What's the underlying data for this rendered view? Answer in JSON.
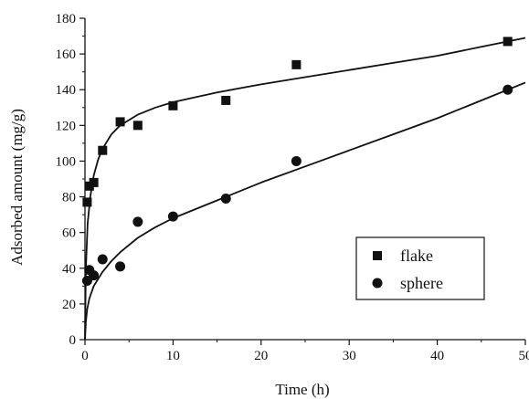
{
  "chart_data": {
    "type": "scatter",
    "xlabel": "Time (h)",
    "ylabel": "Adsorbed amount (mg/g)",
    "xlim": [
      0,
      50
    ],
    "ylim": [
      0,
      180
    ],
    "x_ticks": [
      0,
      10,
      20,
      30,
      40,
      50
    ],
    "y_ticks": [
      0,
      20,
      40,
      60,
      80,
      100,
      120,
      140,
      160,
      180
    ],
    "grid": false,
    "legend_position": "center-right",
    "colors": {
      "ink": "#111111",
      "background": "#ffffff"
    },
    "series": [
      {
        "name": "flake",
        "marker": "square",
        "points": [
          {
            "x": 0.25,
            "y": 77
          },
          {
            "x": 0.5,
            "y": 86
          },
          {
            "x": 1,
            "y": 88
          },
          {
            "x": 2,
            "y": 106
          },
          {
            "x": 4,
            "y": 122
          },
          {
            "x": 6,
            "y": 120
          },
          {
            "x": 10,
            "y": 131
          },
          {
            "x": 16,
            "y": 134
          },
          {
            "x": 24,
            "y": 154
          },
          {
            "x": 48,
            "y": 167
          }
        ],
        "fit_curve": [
          {
            "x": 0,
            "y": 0
          },
          {
            "x": 0.1,
            "y": 40
          },
          {
            "x": 0.3,
            "y": 65
          },
          {
            "x": 0.6,
            "y": 80
          },
          {
            "x": 1,
            "y": 92
          },
          {
            "x": 1.5,
            "y": 101
          },
          {
            "x": 2,
            "y": 107
          },
          {
            "x": 3,
            "y": 115
          },
          {
            "x": 4,
            "y": 120
          },
          {
            "x": 6,
            "y": 126
          },
          {
            "x": 8,
            "y": 130
          },
          {
            "x": 10,
            "y": 133
          },
          {
            "x": 15,
            "y": 138.5
          },
          {
            "x": 20,
            "y": 143
          },
          {
            "x": 25,
            "y": 147
          },
          {
            "x": 30,
            "y": 151
          },
          {
            "x": 35,
            "y": 155
          },
          {
            "x": 40,
            "y": 159
          },
          {
            "x": 45,
            "y": 164
          },
          {
            "x": 50,
            "y": 169
          }
        ]
      },
      {
        "name": "sphere",
        "marker": "circle",
        "points": [
          {
            "x": 0.25,
            "y": 33
          },
          {
            "x": 0.5,
            "y": 39
          },
          {
            "x": 1,
            "y": 36
          },
          {
            "x": 2,
            "y": 45
          },
          {
            "x": 4,
            "y": 41
          },
          {
            "x": 6,
            "y": 66
          },
          {
            "x": 10,
            "y": 69
          },
          {
            "x": 16,
            "y": 79
          },
          {
            "x": 24,
            "y": 100
          },
          {
            "x": 48,
            "y": 140
          }
        ],
        "fit_curve": [
          {
            "x": 0,
            "y": 0
          },
          {
            "x": 0.1,
            "y": 10
          },
          {
            "x": 0.25,
            "y": 17
          },
          {
            "x": 0.5,
            "y": 23
          },
          {
            "x": 1,
            "y": 30
          },
          {
            "x": 2,
            "y": 38
          },
          {
            "x": 3,
            "y": 44
          },
          {
            "x": 4,
            "y": 49
          },
          {
            "x": 6,
            "y": 57
          },
          {
            "x": 8,
            "y": 63
          },
          {
            "x": 10,
            "y": 68
          },
          {
            "x": 15,
            "y": 78
          },
          {
            "x": 20,
            "y": 88
          },
          {
            "x": 25,
            "y": 97
          },
          {
            "x": 30,
            "y": 106
          },
          {
            "x": 35,
            "y": 115
          },
          {
            "x": 40,
            "y": 124
          },
          {
            "x": 45,
            "y": 134
          },
          {
            "x": 50,
            "y": 144
          }
        ]
      }
    ]
  }
}
